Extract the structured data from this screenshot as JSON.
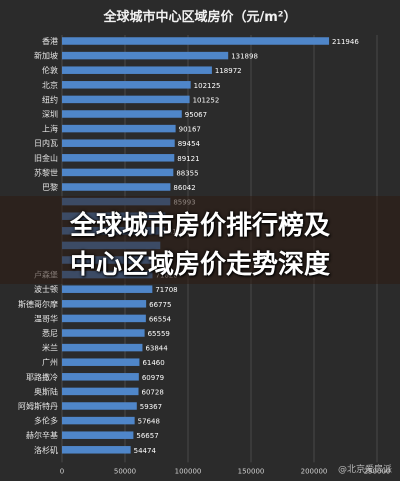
{
  "chart_data": {
    "type": "bar",
    "orientation": "horizontal",
    "title": "全球城市中心区域房价（元/m²）",
    "categories": [
      "香港",
      "新加坡",
      "伦敦",
      "北京",
      "纽约",
      "深圳",
      "上海",
      "日内瓦",
      "旧金山",
      "苏黎世",
      "巴黎",
      "",
      "",
      "",
      "",
      "",
      "卢森堡",
      "波士顿",
      "斯德哥尔摩",
      "温哥华",
      "悉尼",
      "米兰",
      "广州",
      "耶路撒冷",
      "奥斯陆",
      "阿姆斯特丹",
      "多伦多",
      "赫尔辛基",
      "洛杉矶"
    ],
    "values": [
      211946,
      131898,
      118972,
      102125,
      101252,
      95067,
      90167,
      89454,
      89121,
      88355,
      86042,
      85993,
      82000,
      81661,
      78000,
      73000,
      71820,
      71708,
      66775,
      66554,
      65559,
      63844,
      61460,
      60979,
      60728,
      59367,
      57648,
      56657,
      54474
    ],
    "value_labels": [
      "211946",
      "131898",
      "118972",
      "102125",
      "101252",
      "95067",
      "90167",
      "89454",
      "89121",
      "88355",
      "86042",
      "85993",
      "",
      "81661",
      "",
      "",
      "71820",
      "71708",
      "66775",
      "66554",
      "65559",
      "63844",
      "61460",
      "60979",
      "60728",
      "59367",
      "57648",
      "56657",
      "54474"
    ],
    "xlim": [
      0,
      250000
    ],
    "x_ticks": [
      "0",
      "50000",
      "100000",
      "150000",
      "200000",
      "250000"
    ],
    "grid": true,
    "bar_color": "#4f86c9"
  },
  "banner": {
    "line1": "全球城市房价排行榜及",
    "line2": "中心区域房价走势深度"
  },
  "watermark": "@北京爱房派"
}
